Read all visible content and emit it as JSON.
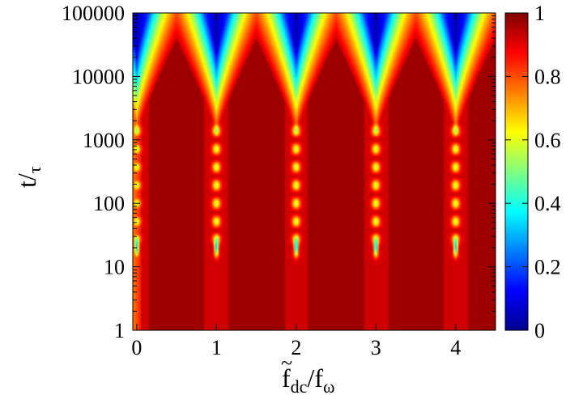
{
  "chart_data": {
    "type": "heatmap",
    "title": "",
    "xlabel": {
      "main": "f",
      "accent": "~",
      "main_sub": "dc",
      "sep": "/",
      "second": "f",
      "second_sub": "ω"
    },
    "ylabel": {
      "main": "t/",
      "sub": "τ"
    },
    "x_ticks": [
      0,
      1,
      2,
      3,
      4
    ],
    "x_tick_labels": [
      "0",
      "1",
      "2",
      "3",
      "4"
    ],
    "y_scale": "log",
    "y_ticks": [
      1,
      10,
      100,
      1000,
      10000,
      100000
    ],
    "y_tick_labels": [
      "1",
      "10",
      "100",
      "1000",
      "10000",
      "100000"
    ],
    "xlim": [
      -0.05,
      4.5
    ],
    "ylim": [
      1,
      100000
    ],
    "colorbar": {
      "range": [
        0,
        1
      ],
      "ticks": [
        0,
        0.2,
        0.4,
        0.6,
        0.8,
        1
      ],
      "tick_labels": [
        "0",
        "0.2",
        "0.4",
        "0.6",
        "0.8",
        "1"
      ],
      "colormap": "jet"
    },
    "resonances": [
      0,
      1,
      2,
      3,
      4
    ],
    "features": {
      "background_value": 0.92,
      "decay_onset_logt_at_resonance": 3.0,
      "decay_onset_logt_midway": 4.6,
      "minimum_value_near_resonance_top": 0.05,
      "bright_spot_logt": 1.3
    }
  }
}
